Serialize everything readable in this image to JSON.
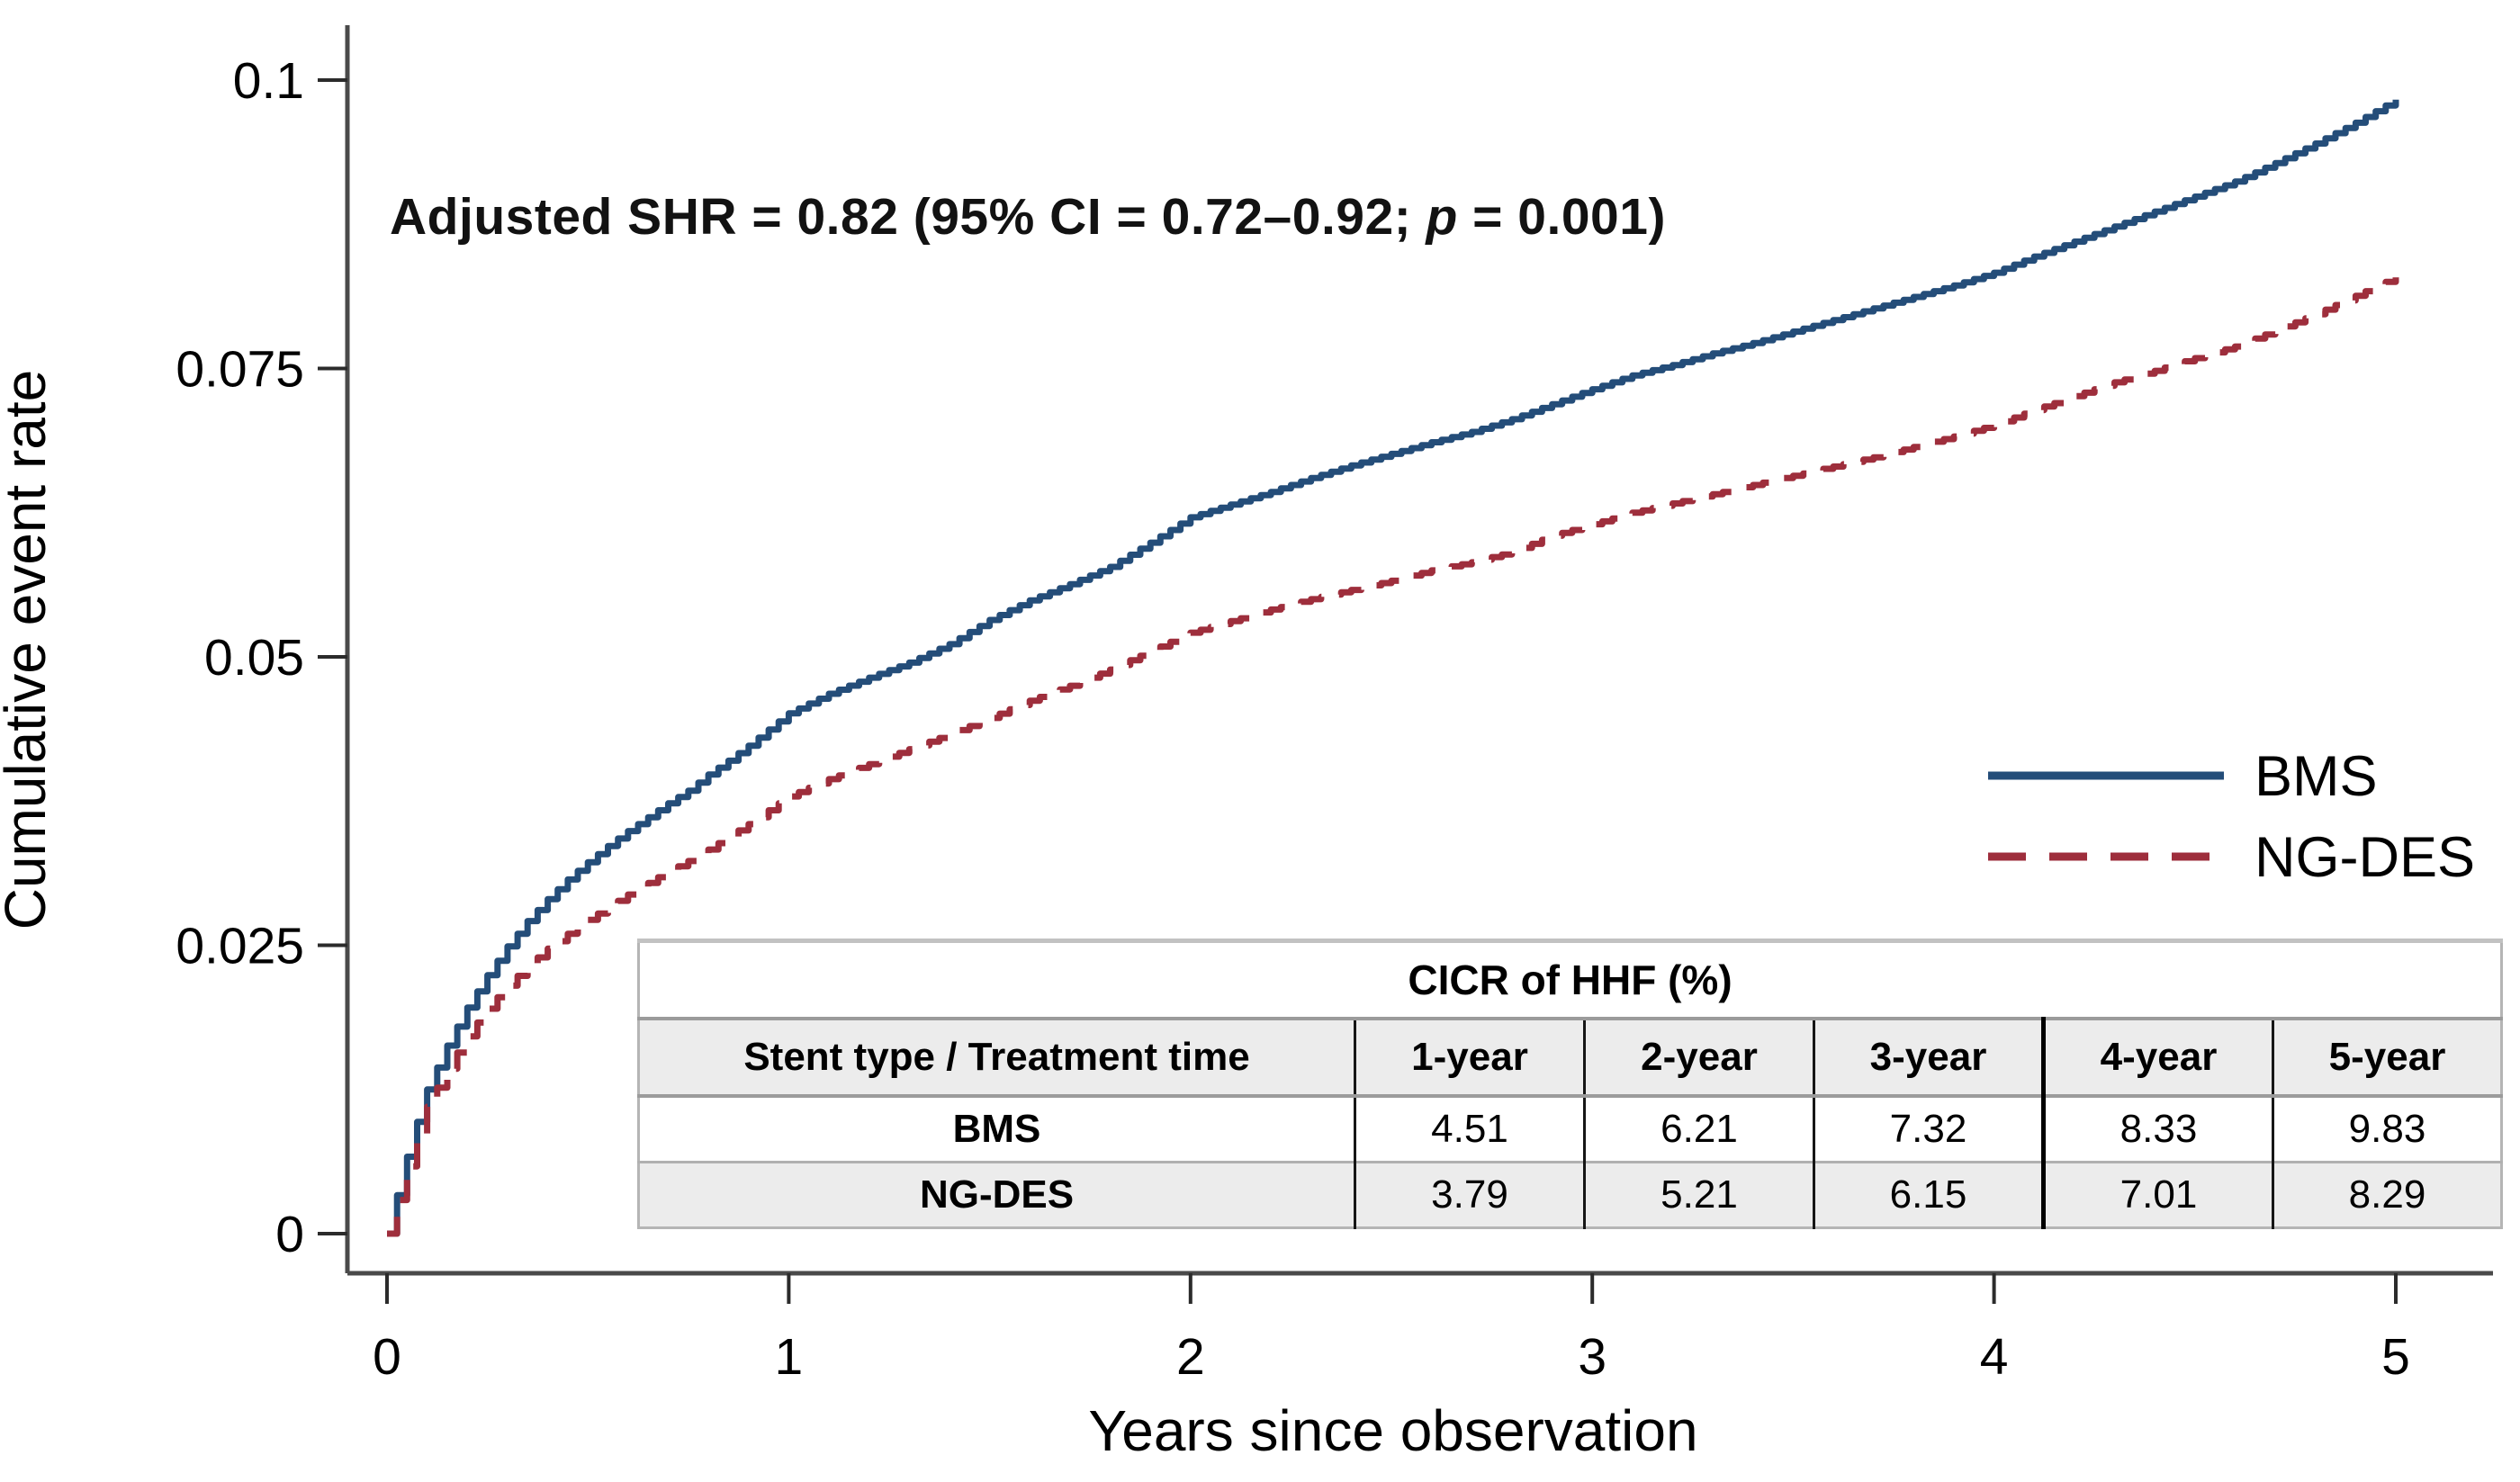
{
  "figure": {
    "background": "#ffffff",
    "text_color": "#000000",
    "axis_line_color": "#4a4a4a",
    "tick_color": "#2b2b2b"
  },
  "annotation": {
    "prefix": "Adjusted SHR = 0.82 (95% CI = 0.72–0.92; ",
    "p_label": "p",
    "suffix": " = 0.001)"
  },
  "chart_data": {
    "type": "line",
    "title": "",
    "xlabel": "Years since observation",
    "ylabel": "Cumulative event rate",
    "xlim": [
      0,
      5
    ],
    "ylim": [
      0,
      0.1
    ],
    "grid": false,
    "legend_position": "right-middle",
    "x_ticks": [
      {
        "value": 0,
        "label": "0"
      },
      {
        "value": 1,
        "label": "1"
      },
      {
        "value": 2,
        "label": "2"
      },
      {
        "value": 3,
        "label": "3"
      },
      {
        "value": 4,
        "label": "4"
      },
      {
        "value": 5,
        "label": "5"
      }
    ],
    "y_ticks": [
      {
        "value": 0,
        "label": "0"
      },
      {
        "value": 0.025,
        "label": "0.025"
      },
      {
        "value": 0.05,
        "label": "0.05"
      },
      {
        "value": 0.075,
        "label": "0.075"
      },
      {
        "value": 0.1,
        "label": "0.1"
      }
    ],
    "series": [
      {
        "name": "BMS",
        "color": "#244d79",
        "style": "solid",
        "points": [
          [
            0,
            0
          ],
          [
            0.03,
            0.004
          ],
          [
            0.06,
            0.008
          ],
          [
            0.1,
            0.0125
          ],
          [
            0.15,
            0.0163
          ],
          [
            0.2,
            0.0196
          ],
          [
            0.25,
            0.0224
          ],
          [
            0.3,
            0.0249
          ],
          [
            0.35,
            0.0271
          ],
          [
            0.4,
            0.029
          ],
          [
            0.45,
            0.0307
          ],
          [
            0.5,
            0.0322
          ],
          [
            0.55,
            0.0336
          ],
          [
            0.6,
            0.0349
          ],
          [
            0.65,
            0.0361
          ],
          [
            0.7,
            0.0373
          ],
          [
            0.75,
            0.0384
          ],
          [
            0.8,
            0.0398
          ],
          [
            0.85,
            0.041
          ],
          [
            0.9,
            0.0423
          ],
          [
            0.95,
            0.0437
          ],
          [
            1,
            0.0451
          ],
          [
            1.1,
            0.0468
          ],
          [
            1.2,
            0.0482
          ],
          [
            1.3,
            0.0495
          ],
          [
            1.4,
            0.0511
          ],
          [
            1.5,
            0.0532
          ],
          [
            1.6,
            0.0549
          ],
          [
            1.7,
            0.0563
          ],
          [
            1.8,
            0.0578
          ],
          [
            1.9,
            0.0599
          ],
          [
            2,
            0.0621
          ],
          [
            2.1,
            0.0632
          ],
          [
            2.2,
            0.0643
          ],
          [
            2.3,
            0.0655
          ],
          [
            2.4,
            0.0666
          ],
          [
            2.5,
            0.0676
          ],
          [
            2.6,
            0.0686
          ],
          [
            2.7,
            0.0695
          ],
          [
            2.8,
            0.0706
          ],
          [
            2.9,
            0.0719
          ],
          [
            3,
            0.0732
          ],
          [
            3.1,
            0.0744
          ],
          [
            3.2,
            0.0753
          ],
          [
            3.3,
            0.0763
          ],
          [
            3.4,
            0.0772
          ],
          [
            3.5,
            0.0782
          ],
          [
            3.6,
            0.0792
          ],
          [
            3.7,
            0.0802
          ],
          [
            3.8,
            0.0812
          ],
          [
            3.9,
            0.0822
          ],
          [
            4,
            0.0833
          ],
          [
            4.1,
            0.0847
          ],
          [
            4.2,
            0.086
          ],
          [
            4.3,
            0.0873
          ],
          [
            4.4,
            0.0886
          ],
          [
            4.5,
            0.0899
          ],
          [
            4.6,
            0.0912
          ],
          [
            4.7,
            0.0928
          ],
          [
            4.8,
            0.0945
          ],
          [
            4.9,
            0.0963
          ],
          [
            5,
            0.0983
          ]
        ]
      },
      {
        "name": "NG-DES",
        "color": "#9e2e3c",
        "style": "dashed",
        "points": [
          [
            0,
            0
          ],
          [
            0.03,
            0.0035
          ],
          [
            0.06,
            0.007
          ],
          [
            0.1,
            0.011
          ],
          [
            0.15,
            0.0143
          ],
          [
            0.2,
            0.0171
          ],
          [
            0.25,
            0.0195
          ],
          [
            0.3,
            0.0215
          ],
          [
            0.35,
            0.0232
          ],
          [
            0.4,
            0.0247
          ],
          [
            0.45,
            0.026
          ],
          [
            0.5,
            0.0272
          ],
          [
            0.55,
            0.0283
          ],
          [
            0.6,
            0.0294
          ],
          [
            0.65,
            0.0304
          ],
          [
            0.7,
            0.0314
          ],
          [
            0.75,
            0.0323
          ],
          [
            0.8,
            0.0333
          ],
          [
            0.85,
            0.0344
          ],
          [
            0.9,
            0.0355
          ],
          [
            0.95,
            0.0367
          ],
          [
            1,
            0.0379
          ],
          [
            1.1,
            0.0394
          ],
          [
            1.2,
            0.0407
          ],
          [
            1.3,
            0.042
          ],
          [
            1.4,
            0.0433
          ],
          [
            1.5,
            0.0447
          ],
          [
            1.6,
            0.0462
          ],
          [
            1.7,
            0.0475
          ],
          [
            1.8,
            0.0489
          ],
          [
            1.9,
            0.0505
          ],
          [
            2,
            0.0521
          ],
          [
            2.1,
            0.0531
          ],
          [
            2.2,
            0.0541
          ],
          [
            2.3,
            0.055
          ],
          [
            2.4,
            0.0558
          ],
          [
            2.5,
            0.0566
          ],
          [
            2.6,
            0.0575
          ],
          [
            2.7,
            0.0582
          ],
          [
            2.8,
            0.0591
          ],
          [
            2.9,
            0.0605
          ],
          [
            3,
            0.0615
          ],
          [
            3.1,
            0.0625
          ],
          [
            3.2,
            0.0633
          ],
          [
            3.3,
            0.0641
          ],
          [
            3.4,
            0.0649
          ],
          [
            3.5,
            0.0657
          ],
          [
            3.6,
            0.0665
          ],
          [
            3.7,
            0.0673
          ],
          [
            3.8,
            0.0682
          ],
          [
            3.9,
            0.0691
          ],
          [
            4,
            0.0701
          ],
          [
            4.1,
            0.0714
          ],
          [
            4.2,
            0.0726
          ],
          [
            4.3,
            0.0738
          ],
          [
            4.4,
            0.0748
          ],
          [
            4.5,
            0.0759
          ],
          [
            4.6,
            0.0769
          ],
          [
            4.7,
            0.0783
          ],
          [
            4.8,
            0.0797
          ],
          [
            4.9,
            0.0813
          ],
          [
            5,
            0.0829
          ]
        ]
      }
    ],
    "legend": [
      {
        "name": "BMS",
        "color": "#244d79",
        "style": "solid"
      },
      {
        "name": "NG-DES",
        "color": "#9e2e3c",
        "style": "dashed"
      }
    ]
  },
  "table": {
    "title": "CICR of HHF (%)",
    "columns": [
      "Stent type / Treatment time",
      "1-year",
      "2-year",
      "3-year",
      "4-year",
      "5-year"
    ],
    "rows": [
      {
        "label": "BMS",
        "values": [
          "4.51",
          "6.21",
          "7.32",
          "8.33",
          "9.83"
        ]
      },
      {
        "label": "NG-DES",
        "values": [
          "3.79",
          "5.21",
          "6.15",
          "7.01",
          "8.29"
        ]
      }
    ]
  }
}
